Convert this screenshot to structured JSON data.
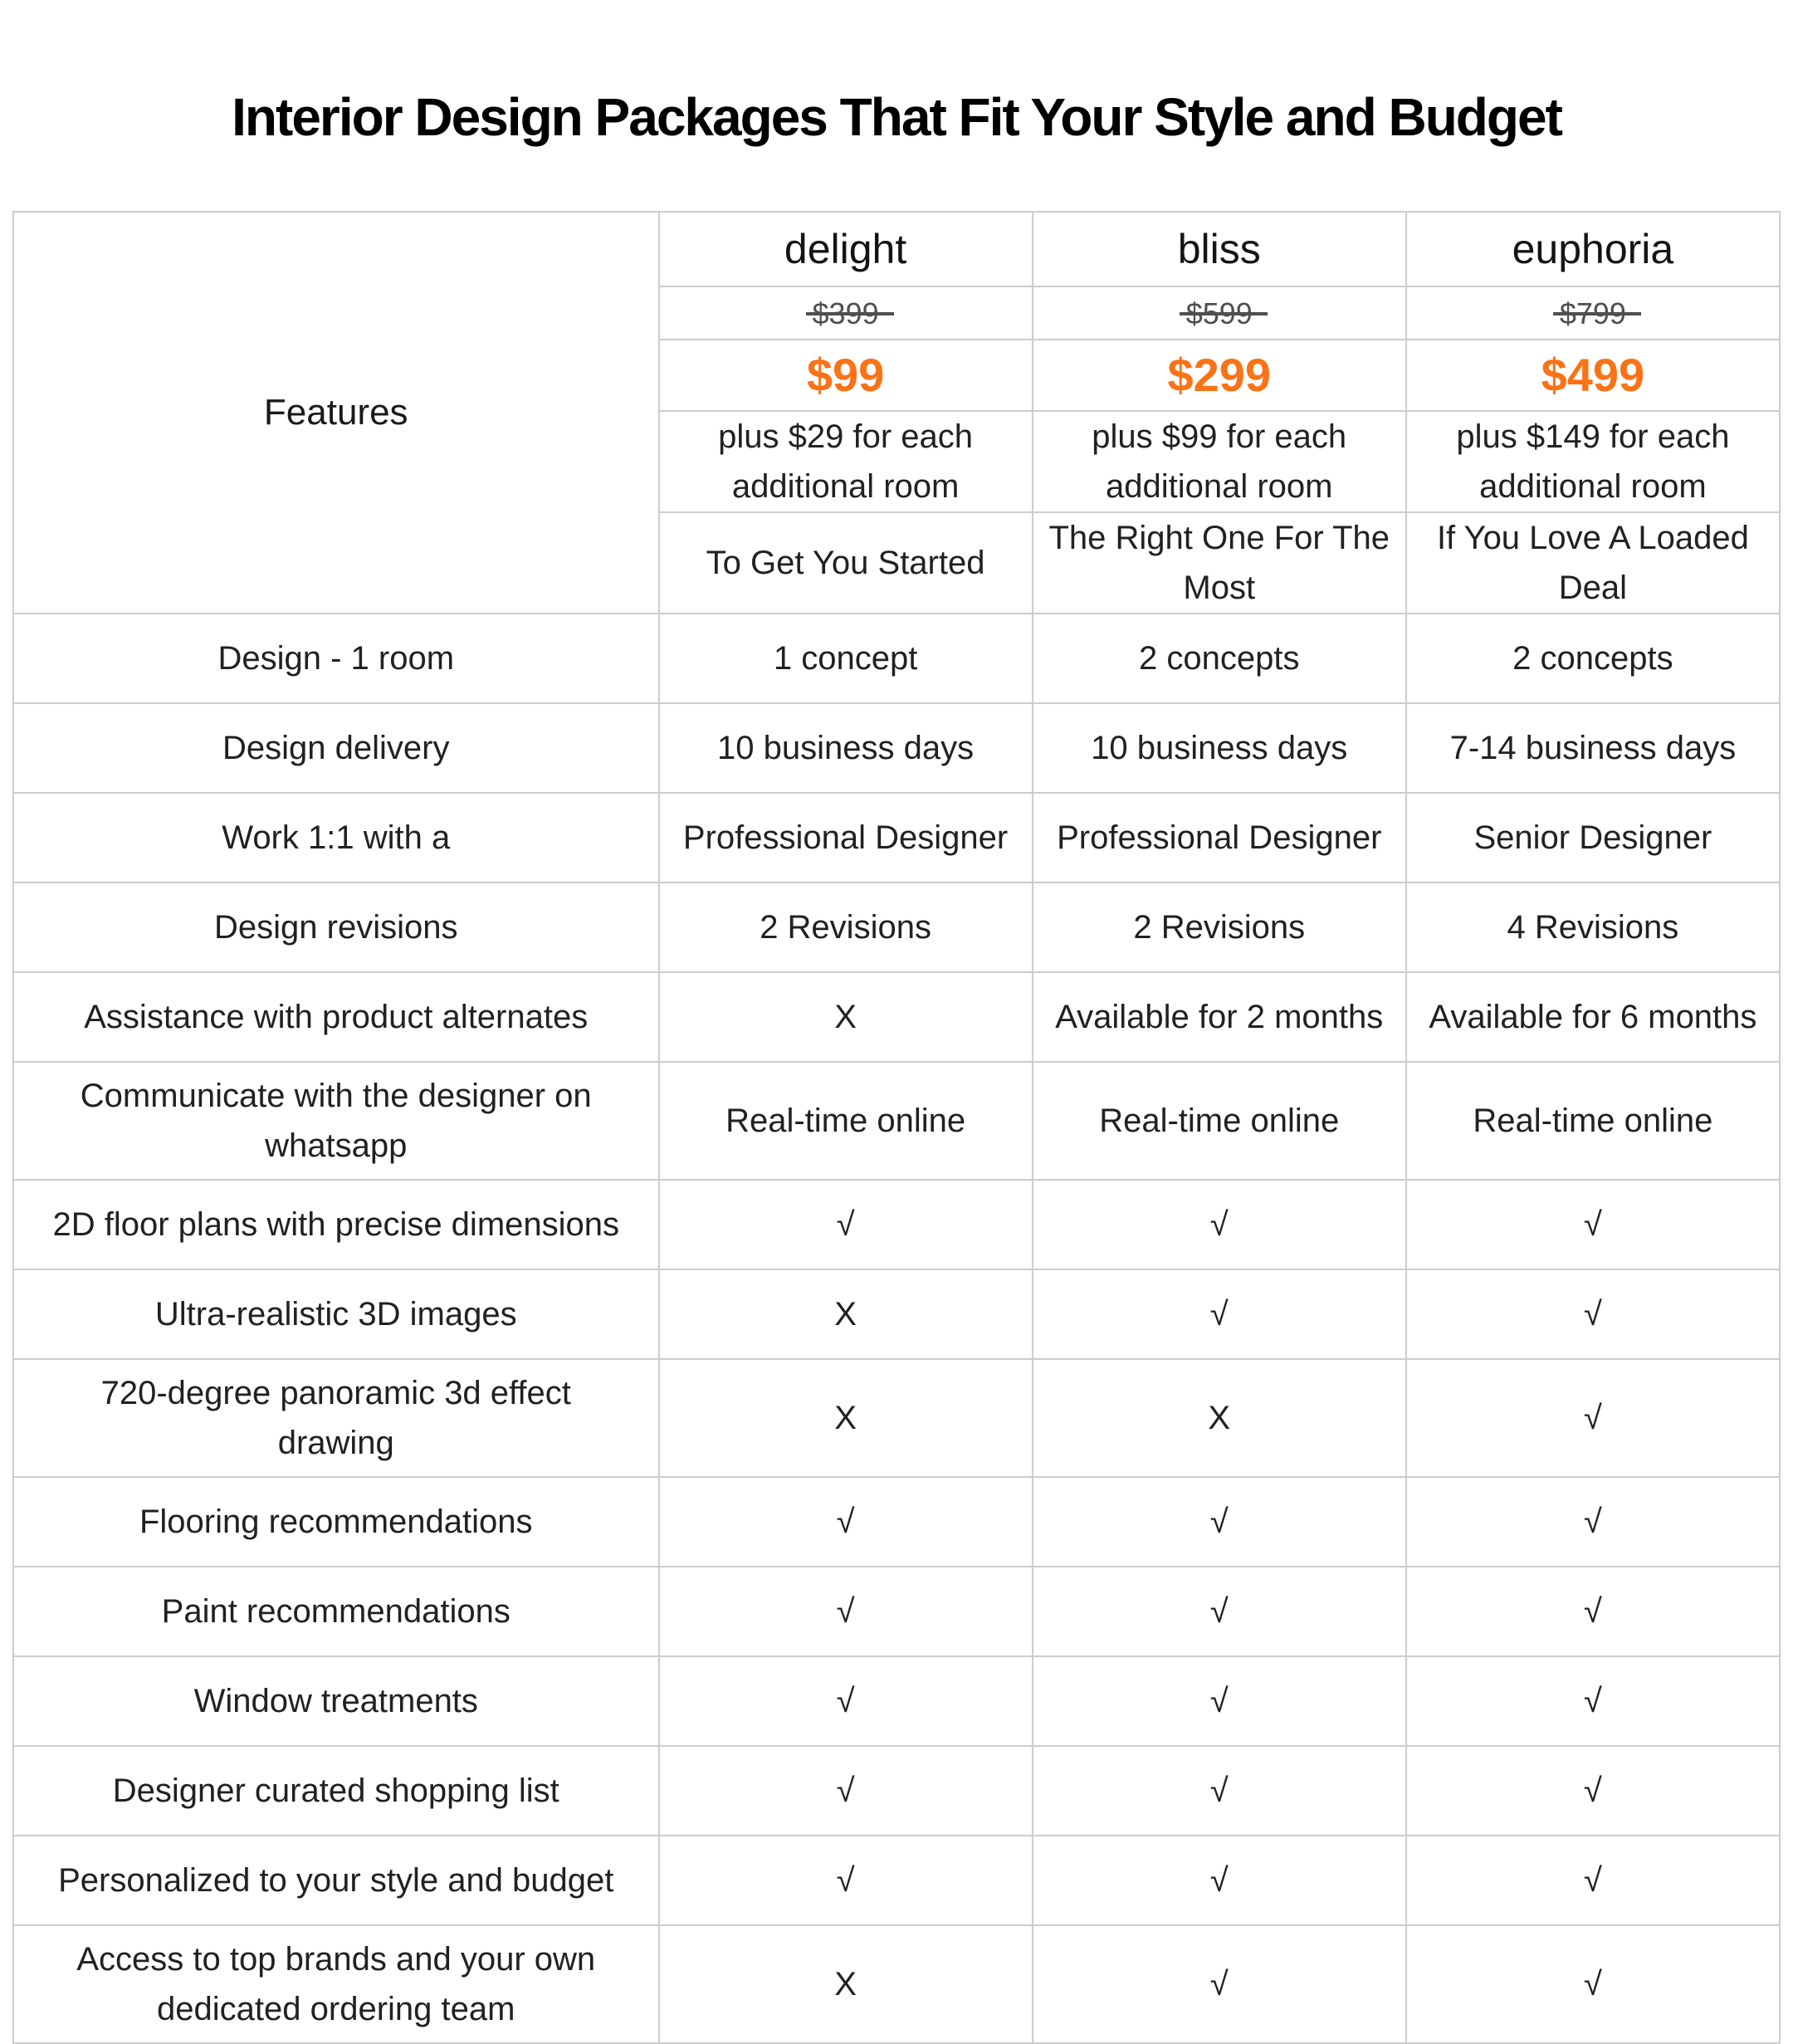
{
  "page": {
    "title": "Interior Design Packages That Fit Your Style and Budget"
  },
  "table": {
    "features_header": "Features",
    "accent_color": "#F97316",
    "check_glyph": "√",
    "cross_glyph": "X",
    "packages": [
      {
        "name": "delight",
        "original_price": "$399",
        "price": "$99",
        "addon": "plus $29 for each additional room",
        "tagline": "To Get You Started"
      },
      {
        "name": "bliss",
        "original_price": "$599",
        "price": "$299",
        "addon": "plus $99 for each additional room",
        "tagline": "The Right One For The Most"
      },
      {
        "name": "euphoria",
        "original_price": "$799",
        "price": "$499",
        "addon": "plus $149 for each additional room",
        "tagline": "If You Love A Loaded Deal"
      }
    ],
    "rows": [
      {
        "feature": "Design - 1 room",
        "values": [
          "1 concept",
          "2 concepts",
          "2 concepts"
        ]
      },
      {
        "feature": "Design delivery",
        "values": [
          "10 business days",
          "10 business days",
          "7-14 business days"
        ]
      },
      {
        "feature": "Work 1:1 with a",
        "values": [
          "Professional Designer",
          "Professional Designer",
          "Senior Designer"
        ]
      },
      {
        "feature": "Design revisions",
        "values": [
          "2 Revisions",
          "2 Revisions",
          "4 Revisions"
        ]
      },
      {
        "feature": "Assistance with product alternates",
        "values": [
          "X",
          "Available for 2 months",
          "Available for 6 months"
        ]
      },
      {
        "feature": "Communicate with the designer on whatsapp",
        "values": [
          "Real-time online",
          "Real-time online",
          "Real-time online"
        ]
      },
      {
        "feature": "2D floor plans with precise dimensions",
        "values": [
          "√",
          "√",
          "√"
        ]
      },
      {
        "feature": "Ultra-realistic 3D images",
        "values": [
          "X",
          "√",
          "√"
        ]
      },
      {
        "feature": "720-degree panoramic 3d effect drawing",
        "values": [
          "X",
          "X",
          "√"
        ]
      },
      {
        "feature": "Flooring recommendations",
        "values": [
          "√",
          "√",
          "√"
        ]
      },
      {
        "feature": "Paint recommendations",
        "values": [
          "√",
          "√",
          "√"
        ]
      },
      {
        "feature": "Window treatments",
        "values": [
          "√",
          "√",
          "√"
        ]
      },
      {
        "feature": "Designer curated shopping list",
        "values": [
          "√",
          "√",
          "√"
        ]
      },
      {
        "feature": "Personalized to your style and budget",
        "values": [
          "√",
          "√",
          "√"
        ]
      },
      {
        "feature": "Access to top brands and your own dedicated ordering team",
        "values": [
          "X",
          "√",
          "√"
        ]
      }
    ]
  }
}
